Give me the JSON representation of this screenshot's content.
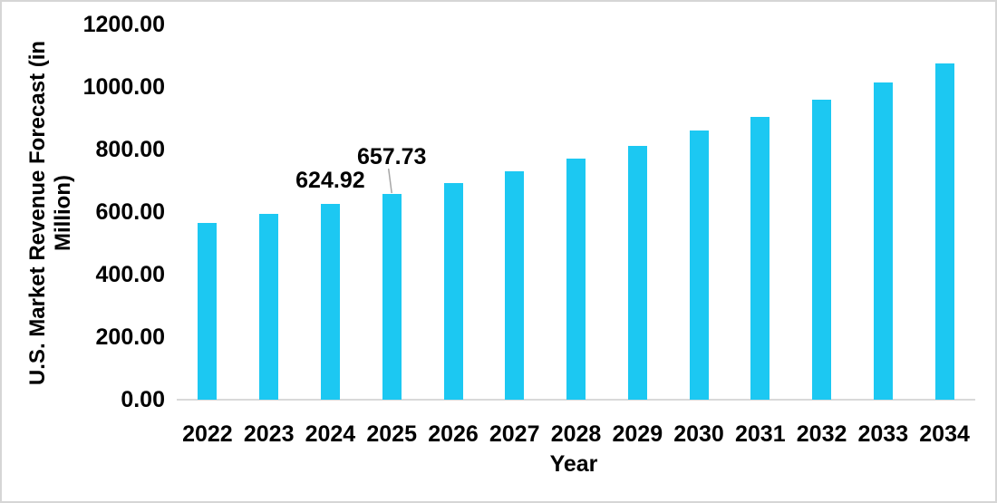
{
  "chart_data": {
    "type": "bar",
    "title": "",
    "xlabel": "Year",
    "ylabel": "U.S. Market Revenue Forecast (in Million)",
    "ylabel_lines": [
      "U.S. Market Revenue Forecast (in",
      "Million)"
    ],
    "categories": [
      "2022",
      "2023",
      "2024",
      "2025",
      "2026",
      "2027",
      "2028",
      "2029",
      "2030",
      "2031",
      "2032",
      "2033",
      "2034"
    ],
    "values": [
      564,
      593,
      624.92,
      657.73,
      692,
      731,
      771,
      813,
      860,
      905,
      961,
      1015,
      1076
    ],
    "data_labels": [
      "",
      "",
      "624.92",
      "657.73",
      "",
      "",
      "",
      "",
      "",
      "",
      "",
      "",
      ""
    ],
    "leader_line_year": "2025",
    "y_ticks": [
      "0.00",
      "200.00",
      "400.00",
      "600.00",
      "800.00",
      "1000.00",
      "1200.00"
    ],
    "ylim": [
      0,
      1200
    ],
    "grid": false,
    "legend": false,
    "layout_hints": {
      "bar_orientation": "vertical",
      "y_axis_side": "left",
      "x_axis_side": "bottom"
    },
    "colors": {
      "bar": "#1cc8f2",
      "axis_line": "#d9d9d9",
      "leader_line": "#a6a6a6",
      "text": "#000000",
      "frame_border": "#d6d6d6",
      "background": "#ffffff"
    }
  }
}
